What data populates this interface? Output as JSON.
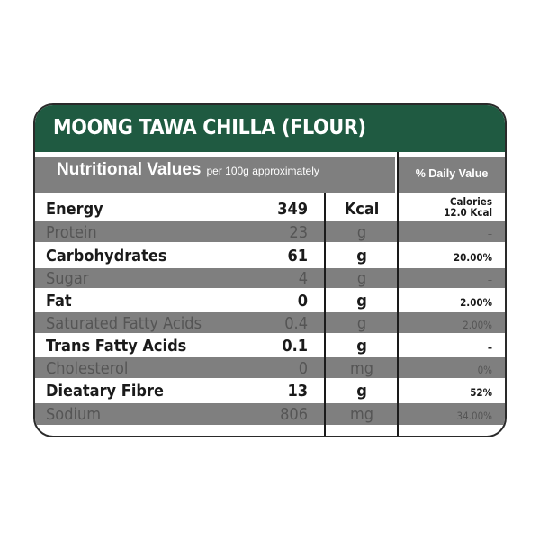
{
  "title": "MOONG TAWA CHILLA (FLOUR)",
  "header": {
    "nutritional_values": "Nutritional Values",
    "per_note": "per 100g approximately",
    "daily_value": "% Daily Value"
  },
  "colors": {
    "title_bar": "#1f5a41",
    "header_bg": "#7f7f7f",
    "stripe_bg": "#7f7f7f"
  },
  "rows": [
    {
      "name": "Energy",
      "value": "349",
      "unit": "Kcal",
      "dv": "Calories",
      "dv2": "12.0 Kcal"
    },
    {
      "name": "Protein",
      "value": "23",
      "unit": "g",
      "dv": "–"
    },
    {
      "name": "Carbohydrates",
      "value": "61",
      "unit": "g",
      "dv": "20.00%"
    },
    {
      "name": "Sugar",
      "value": "4",
      "unit": "g",
      "dv": "–"
    },
    {
      "name": "Fat",
      "value": "0",
      "unit": "g",
      "dv": "2.00%"
    },
    {
      "name": "Saturated Fatty Acids",
      "value": "0.4",
      "unit": "g",
      "dv": "2.00%"
    },
    {
      "name": "Trans Fatty Acids",
      "value": "0.1",
      "unit": "g",
      "dv": "–"
    },
    {
      "name": "Cholesterol",
      "value": "0",
      "unit": "mg",
      "dv": "0%"
    },
    {
      "name": "Dieatary Fibre",
      "value": "13",
      "unit": "g",
      "dv": "52%"
    },
    {
      "name": "Sodium",
      "value": "806",
      "unit": "mg",
      "dv": "34.00%"
    }
  ]
}
